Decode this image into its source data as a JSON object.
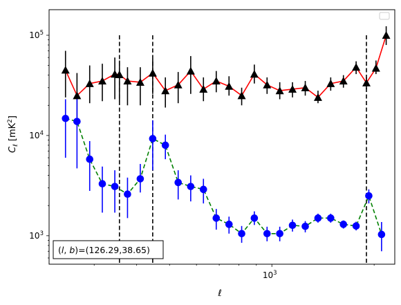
{
  "chart_data": {
    "type": "line",
    "xscale": "log",
    "yscale": "log",
    "xlim": [
      221,
      2300
    ],
    "ylim": [
      520,
      180000
    ],
    "xlabel": "ℓ",
    "ylabel_main": "C",
    "ylabel_sub": "ℓ",
    "ylabel_unit": "[mK",
    "ylabel_unit_sup": "2",
    "ylabel_unit_close": "]",
    "x_ticks": [
      {
        "value": 1000,
        "base": "10",
        "exp": "3"
      }
    ],
    "y_ticks": [
      {
        "value": 1000,
        "base": "10",
        "exp": "3"
      },
      {
        "value": 10000,
        "base": "10",
        "exp": "4"
      },
      {
        "value": 100000,
        "base": "10",
        "exp": "5"
      }
    ],
    "vlines": [
      356,
      446,
      1898
    ],
    "legend": "top-right, empty",
    "annotation": {
      "label": "(l, b)=",
      "value": "(126.29,38.65)"
    },
    "series": [
      {
        "color": "#ff0000",
        "marker": "triangle",
        "marker_color": "#000000",
        "linestyle": "solid",
        "x": [
          247,
          267,
          291,
          317,
          345,
          356,
          376,
          410,
          446,
          486,
          530,
          577,
          629,
          686,
          748,
          815,
          888,
          968,
          1055,
          1150,
          1254,
          1367,
          1490,
          1624,
          1770,
          1898,
          2025,
          2170
        ],
        "y": [
          45000,
          25000,
          33000,
          35000,
          41000,
          40500,
          35000,
          34000,
          42000,
          28000,
          32000,
          44000,
          29000,
          35000,
          31000,
          25000,
          41000,
          32000,
          28000,
          29000,
          30000,
          24000,
          33000,
          35000,
          48000,
          33500,
          47000,
          100000
        ],
        "err_low": [
          24000,
          15000,
          21000,
          22000,
          23000,
          22000,
          20000,
          20000,
          26000,
          19000,
          21000,
          26000,
          22000,
          27000,
          25000,
          20000,
          33000,
          26000,
          23000,
          24000,
          25000,
          21000,
          28000,
          30000,
          41000,
          29000,
          41000,
          80000
        ],
        "err_high": [
          70000,
          42000,
          50000,
          52000,
          60000,
          56000,
          48000,
          48000,
          58000,
          38000,
          43000,
          62000,
          38000,
          44000,
          39000,
          30000,
          51000,
          38000,
          34000,
          34000,
          35000,
          28000,
          38000,
          40000,
          55000,
          38000,
          56000,
          123000
        ]
      },
      {
        "color": "#008000",
        "marker": "circle",
        "marker_color": "#0000ff",
        "linestyle": "dashed",
        "x": [
          247,
          267,
          291,
          317,
          345,
          376,
          410,
          446,
          486,
          530,
          577,
          629,
          686,
          748,
          815,
          888,
          968,
          1055,
          1150,
          1254,
          1367,
          1490,
          1624,
          1770,
          1929,
          2103
        ],
        "y": [
          14800,
          13800,
          5800,
          3300,
          3100,
          2600,
          3700,
          9300,
          8000,
          3400,
          3100,
          2900,
          1500,
          1300,
          1050,
          1500,
          1050,
          1050,
          1270,
          1240,
          1500,
          1500,
          1300,
          1250,
          2500,
          1030
        ],
        "err_low": [
          6000,
          4700,
          2800,
          1700,
          1700,
          1500,
          2700,
          4500,
          5800,
          2300,
          2200,
          2100,
          1150,
          1050,
          850,
          1280,
          880,
          880,
          1100,
          1080,
          1350,
          1350,
          1180,
          1130,
          2100,
          700
        ],
        "err_high": [
          23000,
          23000,
          8800,
          4900,
          4500,
          3800,
          5200,
          14200,
          10200,
          4500,
          4000,
          3700,
          1850,
          1550,
          1250,
          1750,
          1230,
          1230,
          1450,
          1400,
          1660,
          1660,
          1420,
          1380,
          2900,
          1370
        ]
      }
    ]
  }
}
